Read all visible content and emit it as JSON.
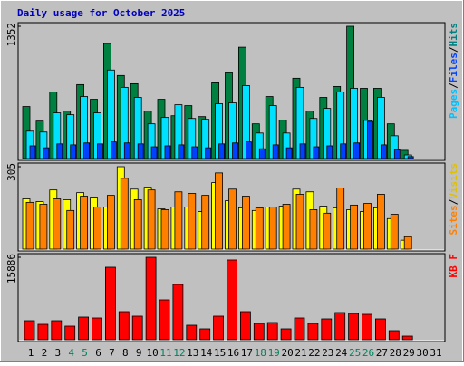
{
  "chart_data": {
    "type": "bar",
    "title": "Daily usage for October 2025",
    "categories": [
      "1",
      "2",
      "3",
      "4",
      "5",
      "6",
      "7",
      "8",
      "9",
      "10",
      "11",
      "12",
      "13",
      "14",
      "15",
      "16",
      "17",
      "18",
      "19",
      "20",
      "21",
      "22",
      "23",
      "24",
      "25",
      "26",
      "27",
      "28",
      "29",
      "30",
      "31"
    ],
    "category_colors": [
      "#000000",
      "#000000",
      "#000000",
      "#00805c",
      "#00805c",
      "#000000",
      "#000000",
      "#000000",
      "#000000",
      "#000000",
      "#00805c",
      "#00805c",
      "#000000",
      "#000000",
      "#000000",
      "#000000",
      "#000000",
      "#00805c",
      "#00805c",
      "#000000",
      "#000000",
      "#000000",
      "#000000",
      "#000000",
      "#00805c",
      "#00805c",
      "#000000",
      "#000000",
      "#000000",
      "#000000",
      "#000000"
    ],
    "legend_separator": "/",
    "panels": [
      {
        "ylim": [
          0,
          1352
        ],
        "yticks": [
          1352
        ],
        "series": [
          {
            "name": "Hits",
            "color": "#008040",
            "label_color": "#008080",
            "values": [
              532,
              383,
              681,
              485,
              756,
              606,
              1176,
              849,
              765,
              485,
              606,
              438,
              541,
              429,
              774,
              877,
              1138,
              355,
              634,
              392,
              821,
              485,
              625,
              737,
              1352,
              718,
              718,
              355,
              84,
              null,
              null
            ]
          },
          {
            "name": "Files",
            "color": "#00e0ff",
            "label_color": "#0040ff",
            "values": [
              280,
              271,
              467,
              448,
              634,
              467,
              905,
              728,
              625,
              355,
              420,
              550,
              410,
              401,
              560,
              569,
              746,
              261,
              541,
              261,
              728,
              410,
              513,
              681,
              718,
              390,
              625,
              233,
              37,
              null,
              null
            ]
          },
          {
            "name": "Pages",
            "color": "#0040ff",
            "label_color": "#00c0ff",
            "values": [
              130,
              110,
              150,
              140,
              160,
              150,
              170,
              160,
              150,
              120,
              130,
              140,
              120,
              110,
              150,
              160,
              170,
              100,
              140,
              110,
              150,
              120,
              130,
              150,
              160,
              380,
              140,
              90,
              20,
              null,
              null
            ]
          }
        ]
      },
      {
        "ylim": [
          0,
          305
        ],
        "yticks": [
          305
        ],
        "series": [
          {
            "name": "Visits",
            "color": "#ffff00",
            "label_color": "#e0c000",
            "values": [
              186,
              176,
              219,
              183,
              209,
              189,
              156,
              305,
              222,
              229,
              149,
              156,
              156,
              139,
              246,
              179,
              153,
              143,
              156,
              159,
              222,
              212,
              159,
              153,
              146,
              139,
              153,
              113,
              33,
              null,
              null
            ]
          },
          {
            "name": "Sites",
            "color": "#ff8000",
            "label_color": "#ff8000",
            "values": [
              173,
              166,
              186,
              143,
              196,
              156,
              199,
              262,
              183,
              219,
              146,
              212,
              206,
              199,
              282,
              222,
              196,
              153,
              156,
              166,
              203,
              146,
              133,
              226,
              163,
              169,
              203,
              129,
              46,
              null,
              null
            ]
          }
        ]
      },
      {
        "ylim": [
          0,
          15886
        ],
        "yticks": [
          15886
        ],
        "series": [
          {
            "name": "KB F",
            "color": "#ff0000",
            "label_color": "#ff0000",
            "values": [
              3667,
              2968,
              3667,
              2619,
              4365,
              4190,
              13968,
              5413,
              4540,
              15886,
              7682,
              10651,
              2794,
              2095,
              4540,
              15365,
              5413,
              3143,
              3317,
              2095,
              4190,
              3143,
              4016,
              5238,
              5063,
              4889,
              4016,
              1746,
              698,
              null,
              null
            ]
          }
        ]
      }
    ]
  }
}
